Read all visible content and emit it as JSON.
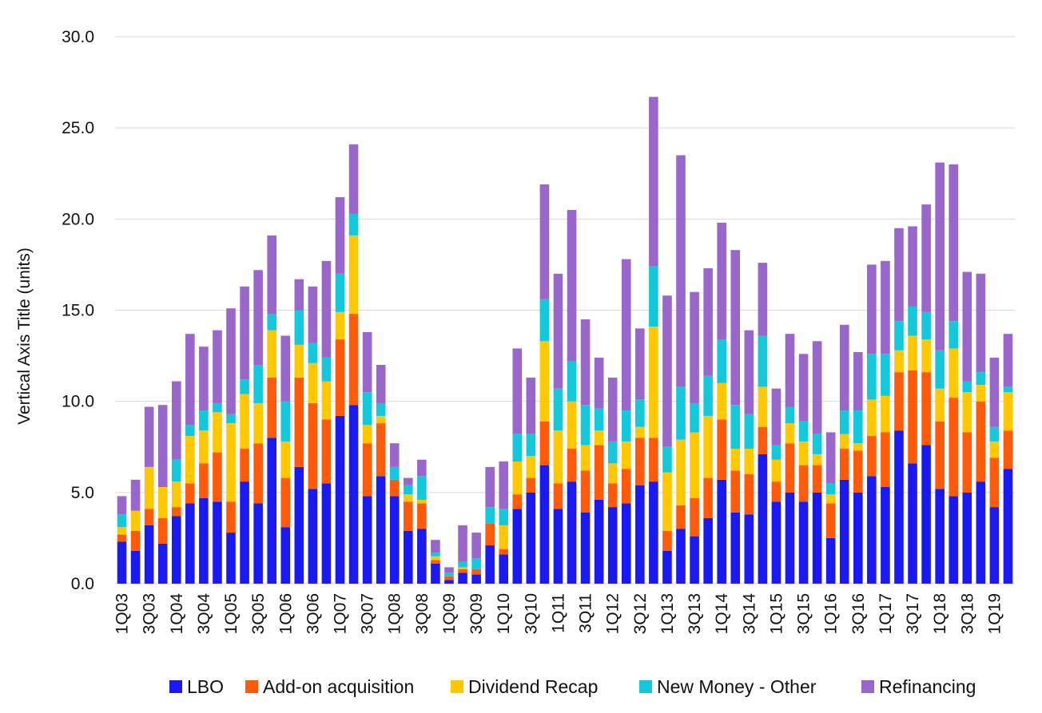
{
  "colors": {
    "LBO": "#1a1af0",
    "Add-on acquisition": "#ff5a0a",
    "Dividend Recap": "#ffc800",
    "New Money - Other": "#14c8dc",
    "Refinancing": "#9966cc"
  },
  "chart_data": {
    "type": "bar",
    "stacked": true,
    "title": "",
    "xlabel": "",
    "ylabel": "Vertical Axis Title (units)",
    "ylim": [
      0,
      30
    ],
    "yticks": [
      "0.0",
      "5.0",
      "10.0",
      "15.0",
      "20.0",
      "25.0",
      "30.0"
    ],
    "grid": true,
    "legend_position": "bottom",
    "categories": [
      "1Q03",
      "2Q03",
      "3Q03",
      "4Q03",
      "1Q04",
      "2Q04",
      "3Q04",
      "4Q04",
      "1Q05",
      "2Q05",
      "3Q05",
      "4Q05",
      "1Q06",
      "2Q06",
      "3Q06",
      "4Q06",
      "1Q07",
      "2Q07",
      "3Q07",
      "4Q07",
      "1Q08",
      "2Q08",
      "3Q08",
      "4Q08",
      "1Q09",
      "2Q09",
      "3Q09",
      "4Q09",
      "1Q10",
      "2Q10",
      "3Q10",
      "4Q10",
      "1Q11",
      "2Q11",
      "3Q11",
      "4Q11",
      "1Q12",
      "2Q12",
      "3Q12",
      "4Q12",
      "1Q13",
      "2Q13",
      "3Q13",
      "4Q13",
      "1Q14",
      "2Q14",
      "3Q14",
      "4Q14",
      "1Q15",
      "2Q15",
      "3Q15",
      "4Q15",
      "1Q16",
      "2Q16",
      "3Q16",
      "4Q16",
      "1Q17",
      "2Q17",
      "3Q17",
      "4Q17",
      "1Q18",
      "2Q18",
      "3Q18",
      "4Q18",
      "1Q19",
      "2Q19"
    ],
    "visible_tick_labels": [
      "1Q03",
      "3Q03",
      "1Q04",
      "3Q04",
      "1Q05",
      "3Q05",
      "1Q06",
      "3Q06",
      "1Q07",
      "3Q07",
      "1Q08",
      "3Q08",
      "1Q09",
      "3Q09",
      "1Q10",
      "3Q10",
      "1Q11",
      "3Q11",
      "1Q12",
      "3Q12",
      "1Q13",
      "3Q13",
      "1Q14",
      "3Q14",
      "1Q15",
      "3Q15",
      "1Q16",
      "3Q16",
      "1Q17",
      "3Q17",
      "1Q18",
      "3Q18",
      "1Q19"
    ],
    "series": [
      {
        "name": "LBO",
        "values": [
          2.3,
          1.8,
          3.2,
          2.2,
          3.7,
          4.4,
          4.7,
          4.5,
          2.8,
          5.6,
          4.4,
          8.0,
          3.1,
          6.4,
          5.2,
          5.5,
          9.2,
          9.8,
          4.8,
          5.9,
          4.8,
          2.9,
          3.0,
          1.1,
          0.2,
          0.6,
          0.5,
          2.1,
          1.6,
          4.1,
          5.0,
          6.5,
          4.1,
          5.6,
          3.9,
          4.6,
          4.2,
          4.4,
          5.4,
          5.6,
          1.8,
          3.0,
          2.6,
          3.6,
          5.7,
          3.9,
          3.8,
          7.1,
          4.5,
          5.0,
          4.5,
          5.0,
          2.5,
          5.7,
          5.0,
          5.9,
          5.3,
          8.4,
          6.6,
          7.6,
          5.2,
          4.8,
          5.0,
          5.6,
          4.2,
          6.3
        ]
      },
      {
        "name": "Add-on acquisition",
        "values": [
          0.4,
          1.1,
          0.9,
          1.4,
          0.5,
          1.1,
          1.9,
          2.7,
          1.7,
          1.8,
          3.3,
          3.3,
          2.7,
          4.9,
          4.7,
          3.5,
          4.2,
          5.0,
          2.9,
          2.9,
          0.9,
          1.6,
          1.4,
          0.2,
          0.2,
          0.2,
          0.3,
          1.2,
          0.3,
          0.8,
          0.8,
          2.4,
          1.4,
          1.8,
          2.3,
          3.0,
          1.3,
          1.9,
          2.6,
          2.4,
          1.1,
          1.3,
          2.1,
          2.2,
          3.3,
          2.3,
          2.2,
          1.5,
          1.1,
          2.7,
          2.0,
          1.5,
          1.9,
          1.7,
          2.3,
          2.2,
          3.0,
          3.2,
          5.1,
          4.0,
          3.7,
          5.4,
          3.3,
          4.4,
          2.7,
          2.1
        ]
      },
      {
        "name": "Dividend Recap",
        "values": [
          0.4,
          1.1,
          2.3,
          1.7,
          1.4,
          2.6,
          1.8,
          2.2,
          4.3,
          3.0,
          2.2,
          2.6,
          2.0,
          1.8,
          2.2,
          2.1,
          1.5,
          4.3,
          1.0,
          0.4,
          0.0,
          0.4,
          0.2,
          0.2,
          0.0,
          0.1,
          0.0,
          0.0,
          1.3,
          1.8,
          1.2,
          4.4,
          2.9,
          2.6,
          1.4,
          0.8,
          1.1,
          1.5,
          0.6,
          6.1,
          3.2,
          3.6,
          3.6,
          3.4,
          2.0,
          1.2,
          1.4,
          2.2,
          1.2,
          1.1,
          1.3,
          0.6,
          0.5,
          0.8,
          0.4,
          2.0,
          2.0,
          1.2,
          1.9,
          1.8,
          1.8,
          2.7,
          2.2,
          0.9,
          0.9,
          2.1
        ]
      },
      {
        "name": "New Money - Other",
        "values": [
          0.7,
          0.0,
          0.0,
          0.0,
          1.2,
          0.6,
          1.1,
          0.5,
          0.5,
          0.8,
          2.1,
          0.9,
          2.2,
          1.9,
          1.1,
          1.3,
          2.1,
          1.2,
          1.8,
          0.7,
          0.7,
          0.5,
          1.3,
          0.2,
          0.2,
          0.3,
          0.6,
          0.9,
          0.9,
          1.5,
          1.2,
          2.3,
          2.3,
          2.2,
          2.2,
          1.2,
          1.2,
          1.7,
          1.5,
          3.3,
          1.4,
          2.9,
          1.6,
          2.2,
          2.4,
          2.4,
          1.9,
          2.8,
          0.8,
          0.9,
          1.1,
          1.1,
          0.6,
          1.3,
          1.8,
          2.5,
          2.3,
          1.6,
          1.6,
          1.5,
          2.1,
          1.5,
          0.6,
          0.7,
          0.8,
          0.3
        ]
      },
      {
        "name": "Refinancing",
        "values": [
          1.0,
          1.7,
          3.3,
          4.5,
          4.3,
          5.0,
          3.5,
          4.0,
          5.8,
          5.1,
          5.2,
          4.3,
          3.6,
          1.7,
          3.1,
          5.3,
          4.2,
          3.8,
          3.3,
          2.1,
          1.3,
          0.4,
          0.9,
          0.7,
          0.3,
          2.0,
          1.4,
          2.2,
          2.6,
          4.7,
          3.1,
          6.3,
          6.3,
          8.3,
          4.7,
          2.8,
          3.5,
          8.3,
          3.9,
          9.3,
          8.3,
          12.7,
          6.1,
          5.9,
          6.4,
          8.5,
          4.6,
          4.0,
          3.1,
          4.0,
          3.7,
          5.1,
          2.8,
          4.7,
          3.2,
          4.9,
          5.1,
          5.1,
          4.4,
          5.9,
          10.3,
          8.6,
          6.0,
          5.4,
          3.8,
          2.9
        ]
      }
    ]
  }
}
